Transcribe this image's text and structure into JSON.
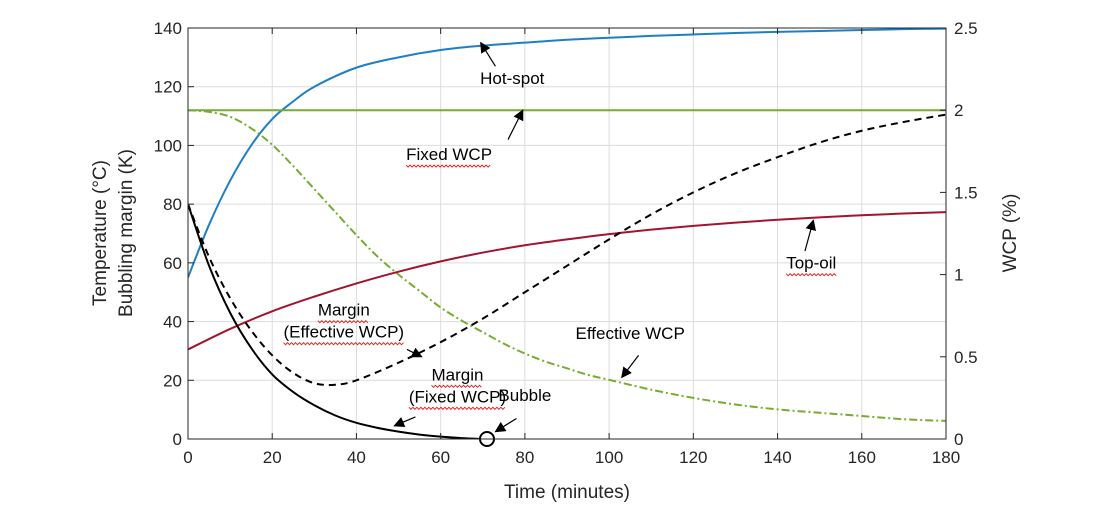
{
  "chart_data": {
    "type": "line",
    "xlabel": "Time (minutes)",
    "ylabel_lines": [
      "Temperature (°C)",
      "Bubbling margin (K)"
    ],
    "y2label": "WCP (%)",
    "xlim": [
      0,
      180
    ],
    "ylim": [
      0,
      140
    ],
    "y2lim": [
      0,
      2.5
    ],
    "x_ticks": [
      0,
      20,
      40,
      60,
      80,
      100,
      120,
      140,
      160,
      180
    ],
    "y_ticks": [
      0,
      20,
      40,
      60,
      80,
      100,
      120,
      140
    ],
    "y2_ticks": [
      "0",
      "0.5",
      "1",
      "1.5",
      "2",
      "2.5"
    ],
    "y2_tick_values": [
      0,
      0.5,
      1,
      1.5,
      2,
      2.5
    ],
    "grid": true,
    "colors": {
      "hot_spot": "#1f7fc4",
      "fixed_wcp": "#77ac30",
      "effective_wcp": "#77ac30",
      "top_oil": "#a2142f",
      "margin_effective": "#000000",
      "margin_fixed": "#000000"
    },
    "series": [
      {
        "key": "hot_spot",
        "axis": "left",
        "style": "solid",
        "x": [
          0,
          5,
          10,
          15,
          20,
          25,
          30,
          40,
          50,
          60,
          70,
          80,
          90,
          100,
          110,
          120,
          130,
          140,
          150,
          160,
          170,
          180
        ],
        "values": [
          55,
          73,
          88,
          100,
          109,
          115,
          120,
          126.5,
          130,
          132.5,
          134,
          135,
          136,
          136.7,
          137.3,
          137.8,
          138.3,
          138.7,
          139,
          139.3,
          139.6,
          139.8
        ]
      },
      {
        "key": "fixed_wcp",
        "axis": "right",
        "style": "solid",
        "x": [
          0,
          180
        ],
        "values": [
          2.0,
          2.0
        ]
      },
      {
        "key": "effective_wcp",
        "axis": "right",
        "style": "dashdot",
        "x": [
          0,
          5,
          10,
          15,
          20,
          25,
          30,
          35,
          40,
          45,
          50,
          55,
          60,
          65,
          70,
          75,
          80,
          85,
          90,
          95,
          100,
          110,
          120,
          130,
          140,
          150,
          160,
          170,
          180
        ],
        "values": [
          2.0,
          1.99,
          1.96,
          1.89,
          1.79,
          1.66,
          1.52,
          1.38,
          1.24,
          1.11,
          1.0,
          0.9,
          0.8,
          0.72,
          0.65,
          0.58,
          0.52,
          0.47,
          0.43,
          0.39,
          0.36,
          0.3,
          0.25,
          0.21,
          0.18,
          0.16,
          0.14,
          0.12,
          0.11
        ]
      },
      {
        "key": "top_oil",
        "axis": "left",
        "style": "solid",
        "x": [
          0,
          10,
          20,
          30,
          40,
          50,
          60,
          70,
          80,
          90,
          100,
          110,
          120,
          130,
          140,
          150,
          160,
          170,
          180
        ],
        "values": [
          30.5,
          37.5,
          43.5,
          48.5,
          53,
          57,
          60.5,
          63.5,
          66,
          68,
          69.8,
          71.3,
          72.6,
          73.7,
          74.7,
          75.5,
          76.2,
          76.8,
          77.3
        ]
      },
      {
        "key": "margin_effective",
        "axis": "left",
        "style": "dashed",
        "x": [
          0,
          5,
          10,
          15,
          20,
          25,
          30,
          35,
          40,
          50,
          60,
          70,
          80,
          90,
          100,
          110,
          120,
          130,
          140,
          150,
          160,
          170,
          180
        ],
        "values": [
          80,
          62,
          48,
          37,
          28.5,
          22.5,
          19,
          18.5,
          20,
          26,
          33,
          41,
          50,
          59,
          68,
          76.5,
          84,
          90.5,
          96,
          101,
          105,
          108,
          110.5
        ]
      },
      {
        "key": "margin_fixed",
        "axis": "left",
        "style": "solid",
        "x": [
          0,
          5,
          10,
          15,
          20,
          25,
          30,
          35,
          40,
          45,
          50,
          55,
          60,
          65,
          70
        ],
        "values": [
          80,
          59,
          43,
          31,
          22,
          16,
          11.5,
          8,
          5.5,
          3.8,
          2.5,
          1.5,
          0.8,
          0.3,
          0
        ]
      }
    ],
    "annotations": [
      {
        "lines": [
          "Hot-spot"
        ],
        "x": 77,
        "y": 121,
        "ax": 73,
        "ay": 127,
        "hx": 69.5,
        "hy": 135,
        "squiggle": []
      },
      {
        "lines": [
          "Fixed WCP"
        ],
        "x": 62,
        "y": 95,
        "ax": 76,
        "ay": 102,
        "hx": 79.5,
        "hy": 112,
        "squiggle": [
          true
        ]
      },
      {
        "lines": [
          "Top-oil"
        ],
        "x": 148,
        "y": 58,
        "ax": 146.5,
        "ay": 64,
        "hx": 148.5,
        "hy": 74.5,
        "squiggle": [
          true
        ]
      },
      {
        "lines": [
          "Margin",
          "(Effective WCP)"
        ],
        "x": 37,
        "y": 42,
        "ax": 52,
        "ay": 30.5,
        "hx": 55.5,
        "hy": 28,
        "squiggle": [
          true,
          true
        ]
      },
      {
        "lines": [
          "Effective WCP"
        ],
        "x": 105,
        "y": 34,
        "ax": 107,
        "ay": 28.5,
        "hx": 103,
        "hy": 21,
        "squiggle": []
      },
      {
        "lines": [
          "Margin",
          "(Fixed WCP)"
        ],
        "x": 64,
        "y": 20,
        "ax": 54,
        "ay": 7.5,
        "hx": 49,
        "hy": 4.5,
        "squiggle": [
          true,
          true
        ]
      },
      {
        "lines": [
          "Bubble"
        ],
        "x": 80,
        "y": 13,
        "ax": 78,
        "ay": 7,
        "hx": 73,
        "hy": 2.5,
        "squiggle": []
      }
    ],
    "markers": [
      {
        "label": "bubble-point",
        "x": 71,
        "y": 0
      }
    ]
  }
}
